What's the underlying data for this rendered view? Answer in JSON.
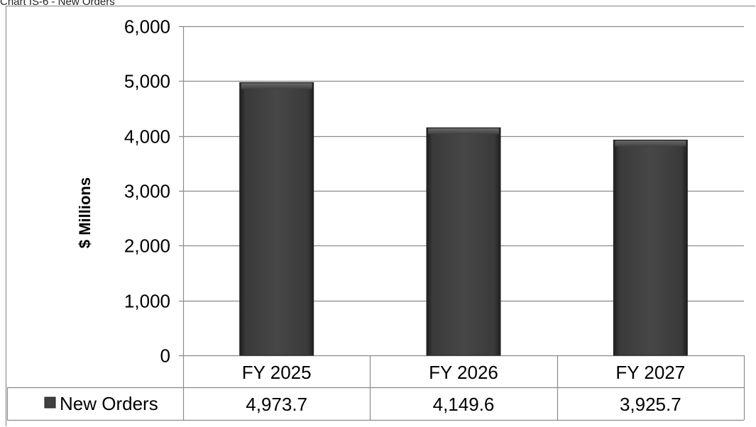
{
  "chart_data": {
    "type": "bar",
    "title": "Chart IS-6 - New Orders",
    "ylabel": "$ Millions",
    "xlabel": "",
    "ylim": [
      0,
      6000
    ],
    "yticks": [
      0,
      1000,
      2000,
      3000,
      4000,
      5000,
      6000
    ],
    "ytick_labels": [
      "0",
      "1,000",
      "2,000",
      "3,000",
      "4,000",
      "5,000",
      "6,000"
    ],
    "categories": [
      "FY 2025",
      "FY 2026",
      "FY 2027"
    ],
    "series": [
      {
        "name": "New Orders",
        "values": [
          4973.7,
          4149.6,
          3925.7
        ],
        "value_labels": [
          "4,973.7",
          "4,149.6",
          "3,925.7"
        ],
        "color": "#404040"
      }
    ],
    "grid": true,
    "legend": "data-table-left",
    "data_table": true
  }
}
